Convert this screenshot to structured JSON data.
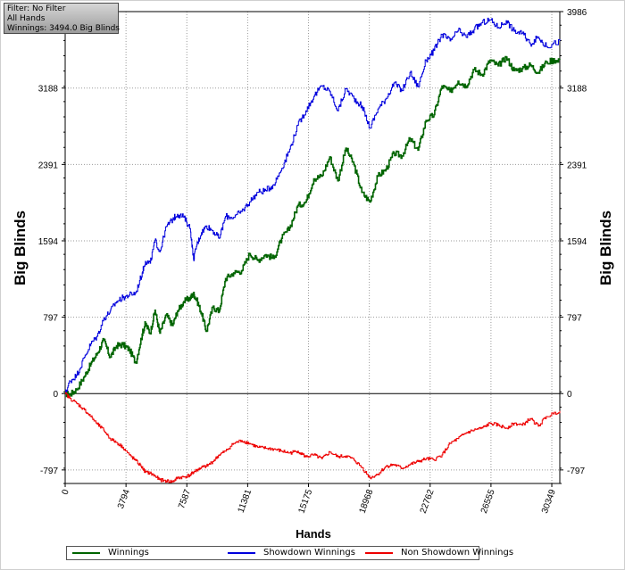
{
  "info": {
    "filter": "Filter: No Filter",
    "hands_scope": "All Hands",
    "winnings": "Winnings: 3494.0 Big Blinds"
  },
  "chart_data": {
    "type": "line",
    "xlabel": "Hands",
    "ylabel_left": "Big Blinds",
    "ylabel_right": "Big Blinds",
    "xlim": [
      0,
      30849
    ],
    "ylim": [
      -938,
      3986
    ],
    "x_ticks": [
      "0",
      "3794",
      "7587",
      "11381",
      "15175",
      "18968",
      "22762",
      "26555",
      "30349"
    ],
    "x_tick_values": [
      0,
      3794,
      7587,
      11381,
      15175,
      18968,
      22762,
      26555,
      30349
    ],
    "y_ticks": [
      "-797",
      "0",
      "797",
      "1594",
      "2391",
      "3188",
      "3986"
    ],
    "y_tick_values": [
      -797,
      0,
      797,
      1594,
      2391,
      3188,
      3986
    ],
    "grid": true,
    "legend_position": "bottom",
    "series": [
      {
        "name": "Winnings",
        "color": "#006400",
        "x": [
          0,
          300,
          700,
          1200,
          1600,
          2000,
          2400,
          2800,
          3200,
          3600,
          4000,
          4400,
          4800,
          5000,
          5300,
          5600,
          5900,
          6300,
          6700,
          7000,
          7400,
          7800,
          8000,
          8200,
          8500,
          8800,
          9200,
          9600,
          10000,
          10500,
          11000,
          11500,
          12000,
          12500,
          13000,
          13500,
          14000,
          14500,
          15000,
          15500,
          16000,
          16500,
          17000,
          17500,
          18000,
          18500,
          19000,
          19500,
          20000,
          20500,
          21000,
          21500,
          22000,
          22500,
          23000,
          23500,
          24000,
          24500,
          25000,
          25500,
          26000,
          26500,
          27000,
          27500,
          28000,
          28500,
          29000,
          29500,
          30000,
          30849
        ],
        "y": [
          0,
          -10,
          40,
          180,
          310,
          420,
          560,
          380,
          500,
          510,
          460,
          320,
          620,
          730,
          630,
          870,
          630,
          820,
          710,
          860,
          960,
          1000,
          1040,
          980,
          840,
          650,
          900,
          860,
          1200,
          1260,
          1280,
          1460,
          1390,
          1450,
          1410,
          1620,
          1730,
          1960,
          2000,
          2240,
          2270,
          2470,
          2220,
          2560,
          2390,
          2100,
          2000,
          2270,
          2340,
          2510,
          2480,
          2660,
          2540,
          2850,
          2910,
          3210,
          3150,
          3260,
          3210,
          3380,
          3330,
          3480,
          3420,
          3510,
          3370,
          3390,
          3430,
          3350,
          3460,
          3494
        ]
      },
      {
        "name": "Showdown Winnings",
        "color": "#0000dd",
        "x": [
          0,
          300,
          700,
          1200,
          1600,
          2000,
          2400,
          2800,
          3200,
          3600,
          4000,
          4400,
          4800,
          5000,
          5300,
          5600,
          5900,
          6300,
          6700,
          7000,
          7400,
          7800,
          8000,
          8200,
          8500,
          8800,
          9200,
          9600,
          10000,
          10500,
          11000,
          11500,
          12000,
          12500,
          13000,
          13500,
          14000,
          14500,
          15000,
          15500,
          16000,
          16500,
          17000,
          17500,
          18000,
          18500,
          19000,
          19500,
          20000,
          20500,
          21000,
          21500,
          22000,
          22500,
          23000,
          23500,
          24000,
          24500,
          25000,
          25500,
          26000,
          26500,
          27000,
          27500,
          28000,
          28500,
          29000,
          29500,
          30000,
          30849
        ],
        "y": [
          0,
          130,
          190,
          380,
          520,
          600,
          780,
          860,
          960,
          1000,
          1030,
          1050,
          1260,
          1380,
          1360,
          1600,
          1480,
          1740,
          1820,
          1870,
          1840,
          1720,
          1400,
          1550,
          1680,
          1750,
          1700,
          1620,
          1850,
          1840,
          1900,
          2000,
          2100,
          2120,
          2180,
          2350,
          2550,
          2800,
          2950,
          3100,
          3210,
          3150,
          2950,
          3180,
          3080,
          3000,
          2770,
          2970,
          3080,
          3240,
          3160,
          3350,
          3200,
          3480,
          3580,
          3750,
          3680,
          3790,
          3720,
          3800,
          3870,
          3900,
          3820,
          3890,
          3780,
          3760,
          3650,
          3720,
          3620,
          3680
        ]
      },
      {
        "name": "Non Showdown Winnings",
        "color": "#ee0000",
        "x": [
          0,
          300,
          700,
          1200,
          1600,
          2000,
          2400,
          2800,
          3200,
          3600,
          4000,
          4400,
          4800,
          5000,
          5300,
          5600,
          5900,
          6300,
          6700,
          7000,
          7400,
          7800,
          8000,
          8200,
          8500,
          8800,
          9200,
          9600,
          10000,
          10500,
          11000,
          11500,
          12000,
          12500,
          13000,
          13500,
          14000,
          14500,
          15000,
          15500,
          16000,
          16500,
          17000,
          17500,
          18000,
          18500,
          19000,
          19500,
          20000,
          20500,
          21000,
          21500,
          22000,
          22500,
          23000,
          23500,
          24000,
          24500,
          25000,
          25500,
          26000,
          26500,
          27000,
          27500,
          28000,
          28500,
          29000,
          29500,
          30000,
          30849
        ],
        "y": [
          0,
          -50,
          -100,
          -170,
          -240,
          -320,
          -380,
          -470,
          -510,
          -560,
          -640,
          -700,
          -770,
          -820,
          -830,
          -860,
          -900,
          -910,
          -920,
          -880,
          -870,
          -850,
          -820,
          -800,
          -770,
          -760,
          -710,
          -640,
          -600,
          -520,
          -490,
          -520,
          -560,
          -570,
          -580,
          -600,
          -620,
          -600,
          -660,
          -640,
          -680,
          -610,
          -660,
          -650,
          -690,
          -770,
          -880,
          -840,
          -760,
          -740,
          -780,
          -740,
          -710,
          -680,
          -690,
          -640,
          -520,
          -470,
          -410,
          -380,
          -360,
          -310,
          -330,
          -360,
          -310,
          -330,
          -260,
          -340,
          -240,
          -180
        ]
      }
    ]
  }
}
